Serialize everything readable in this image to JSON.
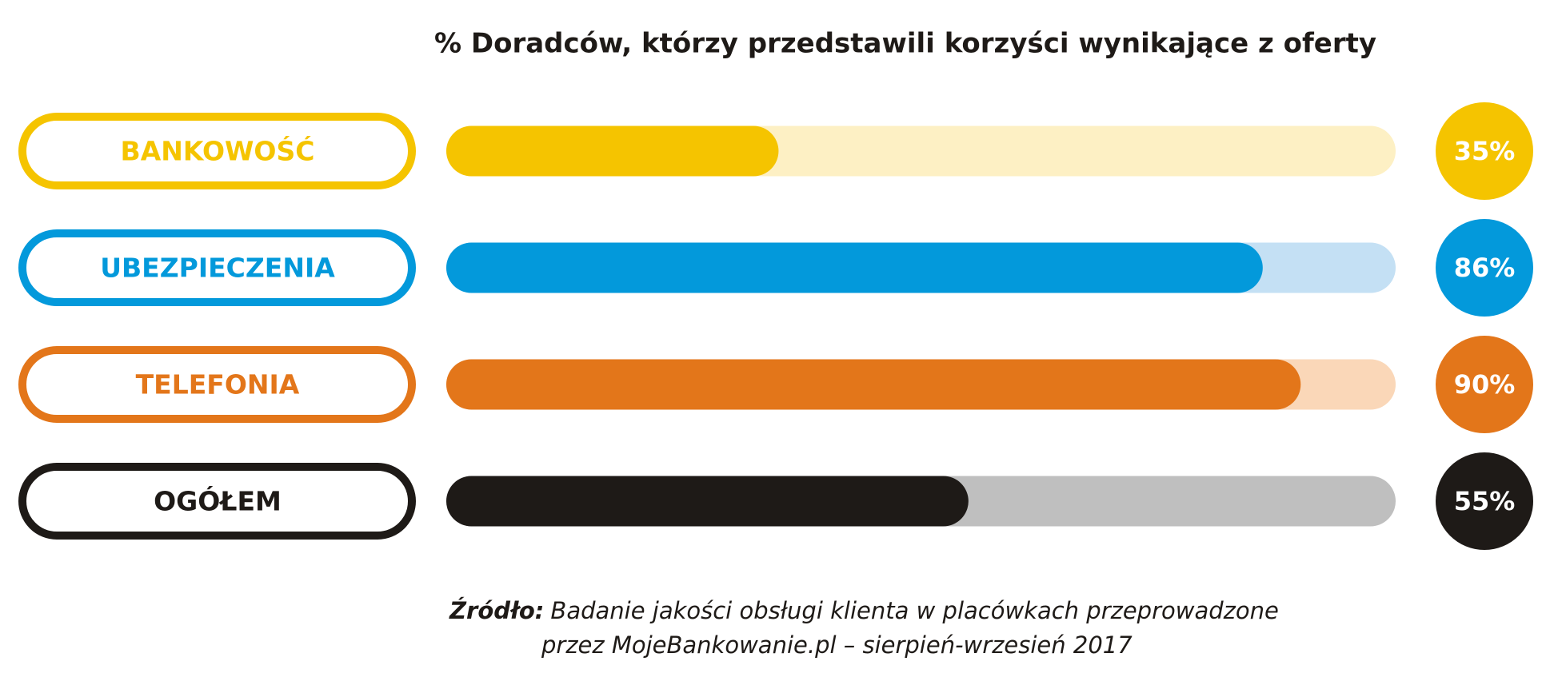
{
  "chart_data": {
    "type": "bar",
    "orientation": "horizontal",
    "title": "% Doradców, którzy przedstawili korzyści wynikające z oferty",
    "categories": [
      "BANKOWOŚĆ",
      "UBEZPIECZENIA",
      "TELEFONIA",
      "OGÓŁEM"
    ],
    "values": [
      35,
      86,
      90,
      55
    ],
    "value_labels": [
      "35%",
      "86%",
      "90%",
      "55%"
    ],
    "colors": [
      "#f5c400",
      "#0399db",
      "#e3761a",
      "#1e1a17"
    ],
    "track_colors": [
      "#fdf0c4",
      "#c4e0f4",
      "#fad7b8",
      "#bfbfbf"
    ],
    "xlim": [
      0,
      100
    ],
    "source_label": "Źródło:",
    "source_lines": [
      "Badanie jakości obsługi klienta w placówkach przeprowadzone",
      "przez MojeBankowanie.pl – sierpień-wrzesień 2017"
    ]
  }
}
